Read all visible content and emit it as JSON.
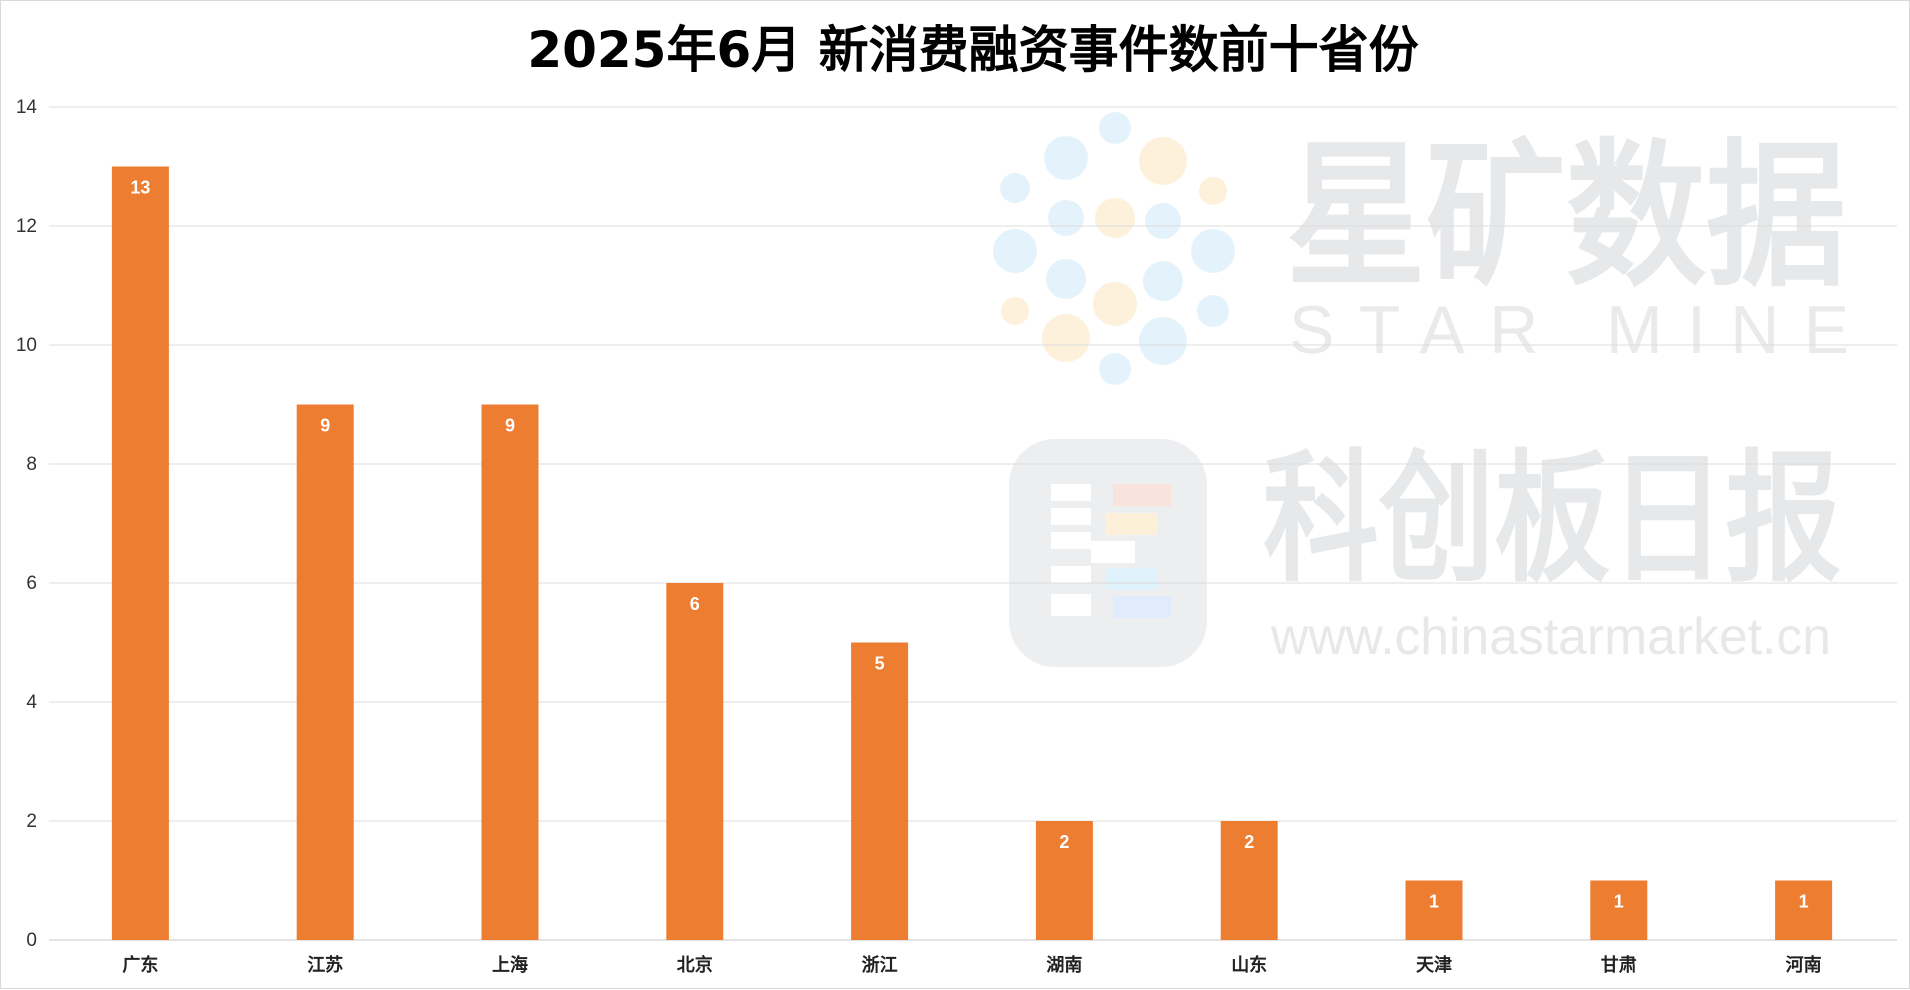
{
  "chart_data": {
    "type": "bar",
    "title": "2025年6月 新消费融资事件数前十省份",
    "xlabel": "",
    "ylabel": "",
    "categories": [
      "广东",
      "江苏",
      "上海",
      "北京",
      "浙江",
      "湖南",
      "山东",
      "天津",
      "甘肃",
      "河南"
    ],
    "values": [
      13,
      9,
      9,
      6,
      5,
      2,
      2,
      1,
      1,
      1
    ],
    "ylim": [
      0,
      14
    ],
    "yticks": [
      0,
      2,
      4,
      6,
      8,
      10,
      12,
      14
    ],
    "grid": true,
    "legend": "none",
    "data_labels": true,
    "bar_color": "#ed7d31",
    "label_color": "#ffffff"
  },
  "watermark": {
    "brand_cn": "星矿数据",
    "brand_en": "STAR MINE",
    "paper_cn": "科创板日报",
    "url": "www.chinastarmarket.cn",
    "dot_colors": [
      "#e4f3fb",
      "#fdf1dc"
    ],
    "logo_tile_color": "#eceef0"
  }
}
